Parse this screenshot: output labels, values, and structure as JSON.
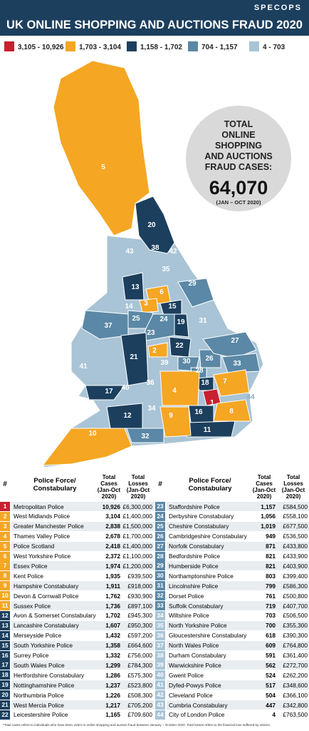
{
  "header": {
    "brand": "SPECOPS",
    "title": "UK ONLINE SHOPPING AND AUCTIONS FRAUD 2020"
  },
  "legend": {
    "items": [
      {
        "label": "3,105 - 10,926",
        "color": "#c8202f"
      },
      {
        "label": "1,703 - 3,104",
        "color": "#f5a623"
      },
      {
        "label": "1,158 - 1,702",
        "color": "#1c3f5e"
      },
      {
        "label": "704 - 1,157",
        "color": "#5b88a6"
      },
      {
        "label": "4 - 703",
        "color": "#a9c4d6"
      }
    ]
  },
  "callout": {
    "lines": [
      "TOTAL",
      "ONLINE",
      "SHOPPING",
      "AND AUCTIONS",
      "FRAUD CASES:"
    ],
    "total": "64,070",
    "period": "(JAN – OCT 2020)"
  },
  "table": {
    "columns": [
      "#",
      "Police Force/ Constabulary",
      "Total Cases (Jan-Oct 2020)",
      "Total Losses (Jan-Oct 2020)"
    ],
    "rows": [
      [
        1,
        "Metropolitan Police",
        "10,926",
        "£6,300,000"
      ],
      [
        2,
        "West Midlands Police",
        "3,104",
        "£1,400,000"
      ],
      [
        3,
        "Greater Manchester Police",
        "2,838",
        "£1,500,000"
      ],
      [
        4,
        "Thames Valley Police",
        "2,678",
        "£1,700,000"
      ],
      [
        5,
        "Police Scotland",
        "2,418",
        "£1,400,000"
      ],
      [
        6,
        "West Yorkshire Police",
        "2,372",
        "£1,100,000"
      ],
      [
        7,
        "Essex Police",
        "1,974",
        "£1,200,000"
      ],
      [
        8,
        "Kent Police",
        "1,935",
        "£939,500"
      ],
      [
        9,
        "Hampshire Constabulary",
        "1,911",
        "£918,000"
      ],
      [
        10,
        "Devon & Cornwall Police",
        "1,762",
        "£930,900"
      ],
      [
        11,
        "Sussex Police",
        "1,736",
        "£897,100"
      ],
      [
        12,
        "Avon & Somerset Constabulary",
        "1,702",
        "£945,300"
      ],
      [
        13,
        "Lancashire Constabulary",
        "1,607",
        "£950,300"
      ],
      [
        14,
        "Merseyside Police",
        "1,432",
        "£597,200"
      ],
      [
        15,
        "South Yorkshire Police",
        "1,358",
        "£664,600"
      ],
      [
        16,
        "Surrey Police",
        "1,332",
        "£756,000"
      ],
      [
        17,
        "South Wales Police",
        "1,299",
        "£784,300"
      ],
      [
        18,
        "Hertfordshire Constabulary",
        "1,286",
        "£575,300"
      ],
      [
        19,
        "Nottinghamshire Police",
        "1,237",
        "£523,800"
      ],
      [
        20,
        "Northumbria Police",
        "1,226",
        "£508,300"
      ],
      [
        21,
        "West Mercia Police",
        "1,217",
        "£705,200"
      ],
      [
        22,
        "Leicestershire Police",
        "1,165",
        "£709,600"
      ],
      [
        23,
        "Staffordshire Police",
        "1,157",
        "£584,500"
      ],
      [
        24,
        "Derbyshire Constabulary",
        "1,056",
        "£558,100"
      ],
      [
        25,
        "Cheshire Constabulary",
        "1,019",
        "£677,500"
      ],
      [
        26,
        "Cambridgeshire Constabulary",
        "949",
        "£536,500"
      ],
      [
        27,
        "Norfolk Constabulary",
        "871",
        "£433,800"
      ],
      [
        28,
        "Bedfordshire Police",
        "821",
        "£433,900"
      ],
      [
        29,
        "Humberside Police",
        "821",
        "£403,900"
      ],
      [
        30,
        "Northamptonshire Police",
        "803",
        "£399,400"
      ],
      [
        31,
        "Lincolnshire Police",
        "799",
        "£586,300"
      ],
      [
        32,
        "Dorset Police",
        "761",
        "£500,800"
      ],
      [
        33,
        "Suffolk Constabulary",
        "719",
        "£407,700"
      ],
      [
        34,
        "Wiltshire Police",
        "703",
        "£506,500"
      ],
      [
        35,
        "North Yorkshire Police",
        "700",
        "£355,300"
      ],
      [
        36,
        "Gloucestershire Constabulary",
        "618",
        "£390,300"
      ],
      [
        37,
        "North Wales Police",
        "609",
        "£764,800"
      ],
      [
        38,
        "Durham Constabulary",
        "591",
        "£361,400"
      ],
      [
        39,
        "Warwickshire Police",
        "562",
        "£272,700"
      ],
      [
        40,
        "Gwent Police",
        "524",
        "£262,200"
      ],
      [
        41,
        "Dyfed-Powys Police",
        "517",
        "£348,600"
      ],
      [
        42,
        "Cleveland Police",
        "504",
        "£366,100"
      ],
      [
        43,
        "Cumbria Constabulary",
        "447",
        "£342,800"
      ],
      [
        44,
        "City of London Police",
        "4",
        "£763,500"
      ]
    ],
    "row_colors": [
      "#c8202f",
      "#f5a623",
      "#f5a623",
      "#f5a623",
      "#f5a623",
      "#f5a623",
      "#f5a623",
      "#f5a623",
      "#f5a623",
      "#f5a623",
      "#f5a623",
      "#1c3f5e",
      "#1c3f5e",
      "#1c3f5e",
      "#1c3f5e",
      "#1c3f5e",
      "#1c3f5e",
      "#1c3f5e",
      "#1c3f5e",
      "#1c3f5e",
      "#1c3f5e",
      "#1c3f5e",
      "#5b88a6",
      "#5b88a6",
      "#5b88a6",
      "#5b88a6",
      "#5b88a6",
      "#5b88a6",
      "#5b88a6",
      "#5b88a6",
      "#5b88a6",
      "#5b88a6",
      "#5b88a6",
      "#a9c4d6",
      "#a9c4d6",
      "#a9c4d6",
      "#a9c4d6",
      "#a9c4d6",
      "#a9c4d6",
      "#a9c4d6",
      "#a9c4d6",
      "#a9c4d6",
      "#a9c4d6",
      "#a9c4d6"
    ]
  },
  "footnote": "*Total cases refers to individuals who have been victim to online shopping and auction fraud between January – October 2020. Total losses refers to the financial loss suffered by victims."
}
